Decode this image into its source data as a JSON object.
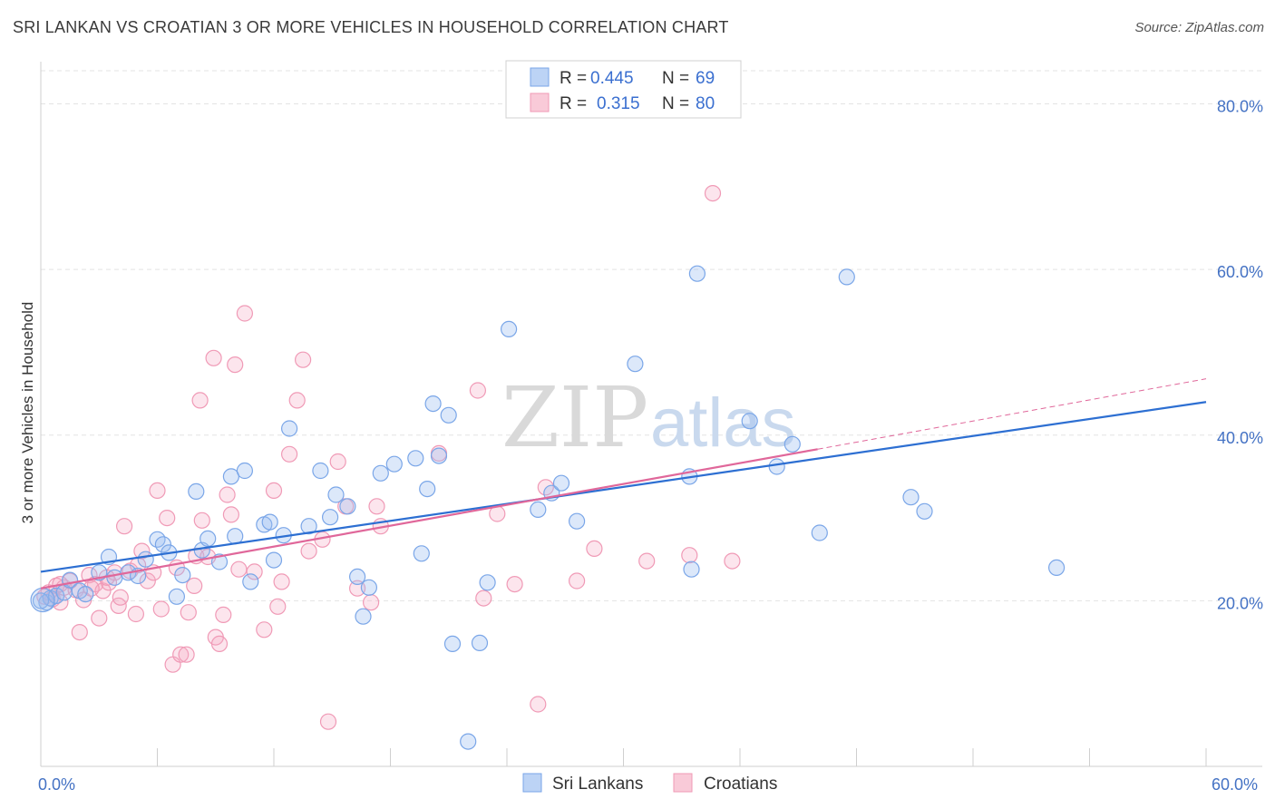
{
  "chart_data": {
    "type": "scatter",
    "title": "SRI LANKAN VS CROATIAN 3 OR MORE VEHICLES IN HOUSEHOLD CORRELATION CHART",
    "source": "Source: ZipAtlas.com",
    "watermark": {
      "zip": "ZIP",
      "atlas": "atlas"
    },
    "xlabel": "",
    "ylabel": "3 or more Vehicles in Household",
    "xlim": [
      0,
      60
    ],
    "ylim": [
      0,
      84
    ],
    "x_tick_labels": [
      "0.0%",
      "60.0%"
    ],
    "y_ticks": [
      20,
      40,
      60,
      80
    ],
    "y_tick_labels": [
      "20.0%",
      "40.0%",
      "60.0%",
      "80.0%"
    ],
    "legend": {
      "series1": {
        "r_label": "R = ",
        "r_value": "0.445",
        "n_label": "N = ",
        "n_value": "69"
      },
      "series2": {
        "r_label": "R = ",
        "r_value": "0.315",
        "n_label": "N = ",
        "n_value": "80"
      }
    },
    "bottom_legend": [
      "Sri Lankans",
      "Croatians"
    ],
    "colors": {
      "blue": "#7aa6e8",
      "blue_line": "#2d6fd2",
      "pink": "#f09ab6",
      "pink_line": "#e0679a",
      "axis_text": "#4472c4"
    },
    "series": [
      {
        "name": "Sri Lankans",
        "trend": {
          "x0": 0,
          "y0": 23.5,
          "x1": 60,
          "y1": 44.0
        },
        "points": [
          [
            0.3,
            19.8
          ],
          [
            0.5,
            20.3
          ],
          [
            0.8,
            20.6
          ],
          [
            1.2,
            21.0
          ],
          [
            1.5,
            22.5
          ],
          [
            2.0,
            21.2
          ],
          [
            2.3,
            20.8
          ],
          [
            3.0,
            23.4
          ],
          [
            3.5,
            25.3
          ],
          [
            3.8,
            22.8
          ],
          [
            4.5,
            23.4
          ],
          [
            5.0,
            23.0
          ],
          [
            5.4,
            25.0
          ],
          [
            6.0,
            27.4
          ],
          [
            6.3,
            26.8
          ],
          [
            6.6,
            25.8
          ],
          [
            7.0,
            20.5
          ],
          [
            7.3,
            23.1
          ],
          [
            8.0,
            33.2
          ],
          [
            8.3,
            26.1
          ],
          [
            8.6,
            27.5
          ],
          [
            9.2,
            24.7
          ],
          [
            9.8,
            35.0
          ],
          [
            10.0,
            27.8
          ],
          [
            10.5,
            35.7
          ],
          [
            10.8,
            22.3
          ],
          [
            11.5,
            29.2
          ],
          [
            11.8,
            29.5
          ],
          [
            12.0,
            24.9
          ],
          [
            12.5,
            27.9
          ],
          [
            12.8,
            40.8
          ],
          [
            13.8,
            29.0
          ],
          [
            14.4,
            35.7
          ],
          [
            14.9,
            30.1
          ],
          [
            15.2,
            32.8
          ],
          [
            15.8,
            31.4
          ],
          [
            16.3,
            22.9
          ],
          [
            16.6,
            18.1
          ],
          [
            16.9,
            21.6
          ],
          [
            17.5,
            35.4
          ],
          [
            18.2,
            36.5
          ],
          [
            19.3,
            37.2
          ],
          [
            19.6,
            25.7
          ],
          [
            19.9,
            33.5
          ],
          [
            20.2,
            43.8
          ],
          [
            20.5,
            37.5
          ],
          [
            21.0,
            42.4
          ],
          [
            21.2,
            14.8
          ],
          [
            22.0,
            3.0
          ],
          [
            22.6,
            14.9
          ],
          [
            23.0,
            22.2
          ],
          [
            24.1,
            52.8
          ],
          [
            25.6,
            31.0
          ],
          [
            26.3,
            33.0
          ],
          [
            26.8,
            34.2
          ],
          [
            27.6,
            29.6
          ],
          [
            30.6,
            48.6
          ],
          [
            33.4,
            35.0
          ],
          [
            33.5,
            23.8
          ],
          [
            33.8,
            59.5
          ],
          [
            36.5,
            41.7
          ],
          [
            37.9,
            36.2
          ],
          [
            38.7,
            38.9
          ],
          [
            40.1,
            28.2
          ],
          [
            41.5,
            59.1
          ],
          [
            44.8,
            32.5
          ],
          [
            45.5,
            30.8
          ],
          [
            52.3,
            24.0
          ],
          [
            0.0,
            20.0
          ]
        ]
      },
      {
        "name": "Croatians",
        "trend": {
          "x0": 0,
          "y0": 21.5,
          "x1": 40,
          "y1": 38.3
        },
        "trend_dashed": {
          "x0": 40,
          "y0": 38.3,
          "x1": 60,
          "y1": 46.8
        },
        "points": [
          [
            0.2,
            20.5
          ],
          [
            0.4,
            21.0
          ],
          [
            0.6,
            20.2
          ],
          [
            0.8,
            21.8
          ],
          [
            1.0,
            19.8
          ],
          [
            1.2,
            21.6
          ],
          [
            1.5,
            22.4
          ],
          [
            1.8,
            21.3
          ],
          [
            2.0,
            16.2
          ],
          [
            2.2,
            20.1
          ],
          [
            2.5,
            23.1
          ],
          [
            2.8,
            22.0
          ],
          [
            3.0,
            17.9
          ],
          [
            3.2,
            21.2
          ],
          [
            3.5,
            22.2
          ],
          [
            3.8,
            23.4
          ],
          [
            4.0,
            19.4
          ],
          [
            4.3,
            29.0
          ],
          [
            4.6,
            23.6
          ],
          [
            4.9,
            18.4
          ],
          [
            5.0,
            24.3
          ],
          [
            5.2,
            26.0
          ],
          [
            5.5,
            22.4
          ],
          [
            5.8,
            23.4
          ],
          [
            6.0,
            33.3
          ],
          [
            6.2,
            19.0
          ],
          [
            6.5,
            30.0
          ],
          [
            6.8,
            12.3
          ],
          [
            7.0,
            24.0
          ],
          [
            7.2,
            13.5
          ],
          [
            7.5,
            13.5
          ],
          [
            7.6,
            18.6
          ],
          [
            7.9,
            21.8
          ],
          [
            8.0,
            25.4
          ],
          [
            8.2,
            44.2
          ],
          [
            8.3,
            29.7
          ],
          [
            8.6,
            25.3
          ],
          [
            8.9,
            49.3
          ],
          [
            9.0,
            15.6
          ],
          [
            9.2,
            14.8
          ],
          [
            9.4,
            18.3
          ],
          [
            9.6,
            32.8
          ],
          [
            9.8,
            30.4
          ],
          [
            10.0,
            48.5
          ],
          [
            10.2,
            23.8
          ],
          [
            10.5,
            54.7
          ],
          [
            11.0,
            23.5
          ],
          [
            11.5,
            16.5
          ],
          [
            12.0,
            33.3
          ],
          [
            12.2,
            19.3
          ],
          [
            12.4,
            22.3
          ],
          [
            12.8,
            37.7
          ],
          [
            13.2,
            44.2
          ],
          [
            13.5,
            49.1
          ],
          [
            13.8,
            26.0
          ],
          [
            14.5,
            27.4
          ],
          [
            14.8,
            5.4
          ],
          [
            15.3,
            36.8
          ],
          [
            15.7,
            31.4
          ],
          [
            16.3,
            21.5
          ],
          [
            17.0,
            19.8
          ],
          [
            17.3,
            31.4
          ],
          [
            17.5,
            29.0
          ],
          [
            20.5,
            37.8
          ],
          [
            22.5,
            45.4
          ],
          [
            22.8,
            20.3
          ],
          [
            23.5,
            30.5
          ],
          [
            24.4,
            22.0
          ],
          [
            25.6,
            7.5
          ],
          [
            26.0,
            33.7
          ],
          [
            27.6,
            22.4
          ],
          [
            28.5,
            26.3
          ],
          [
            31.2,
            24.8
          ],
          [
            33.4,
            25.5
          ],
          [
            34.6,
            69.2
          ],
          [
            35.6,
            24.8
          ],
          [
            1.0,
            22.0
          ],
          [
            2.6,
            21.5
          ],
          [
            3.4,
            22.8
          ],
          [
            4.1,
            20.4
          ]
        ]
      }
    ]
  }
}
